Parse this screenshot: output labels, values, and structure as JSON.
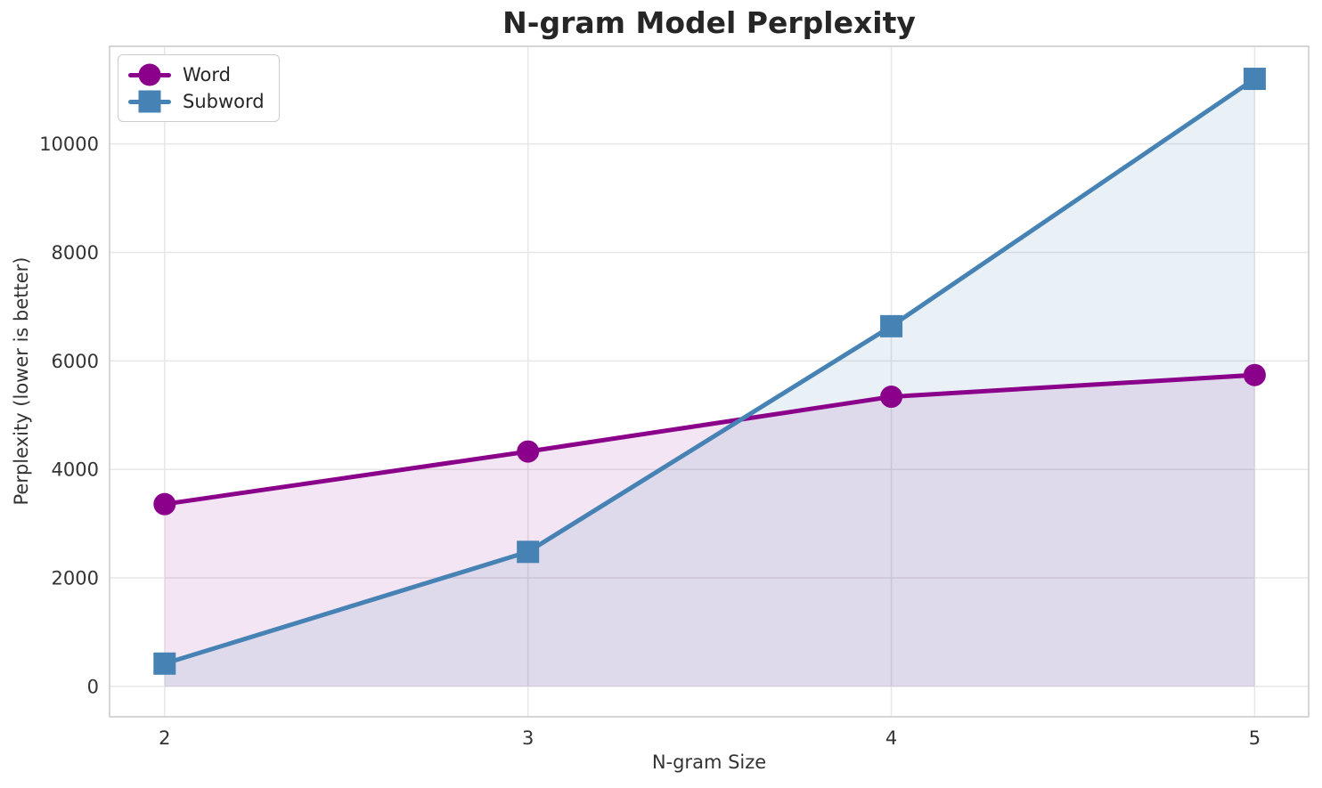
{
  "chart_data": {
    "type": "line",
    "title": "N-gram Model Perplexity",
    "xlabel": "N-gram Size",
    "ylabel": "Perplexity (lower is better)",
    "x": [
      2,
      3,
      4,
      5
    ],
    "series": [
      {
        "name": "Word",
        "marker": "circle",
        "color": "#8B008B",
        "fill_alpha": 0.1,
        "values": [
          3360,
          4330,
          5340,
          5740
        ]
      },
      {
        "name": "Subword",
        "marker": "square",
        "color": "#4682B4",
        "fill_alpha": 0.12,
        "values": [
          420,
          2480,
          6640,
          11200
        ]
      }
    ],
    "xticks": [
      "2",
      "3",
      "4",
      "5"
    ],
    "xtick_positions": [
      2,
      3,
      4,
      5
    ],
    "yticks": [
      "0",
      "2000",
      "4000",
      "6000",
      "8000",
      "10000"
    ],
    "ytick_positions": [
      0,
      2000,
      4000,
      6000,
      8000,
      10000
    ],
    "xlim": [
      1.8485,
      5.1485
    ],
    "ylim": [
      -560,
      11800
    ],
    "grid": true,
    "legend_position": "upper left",
    "area_fill": true,
    "fill_baseline": 0
  }
}
